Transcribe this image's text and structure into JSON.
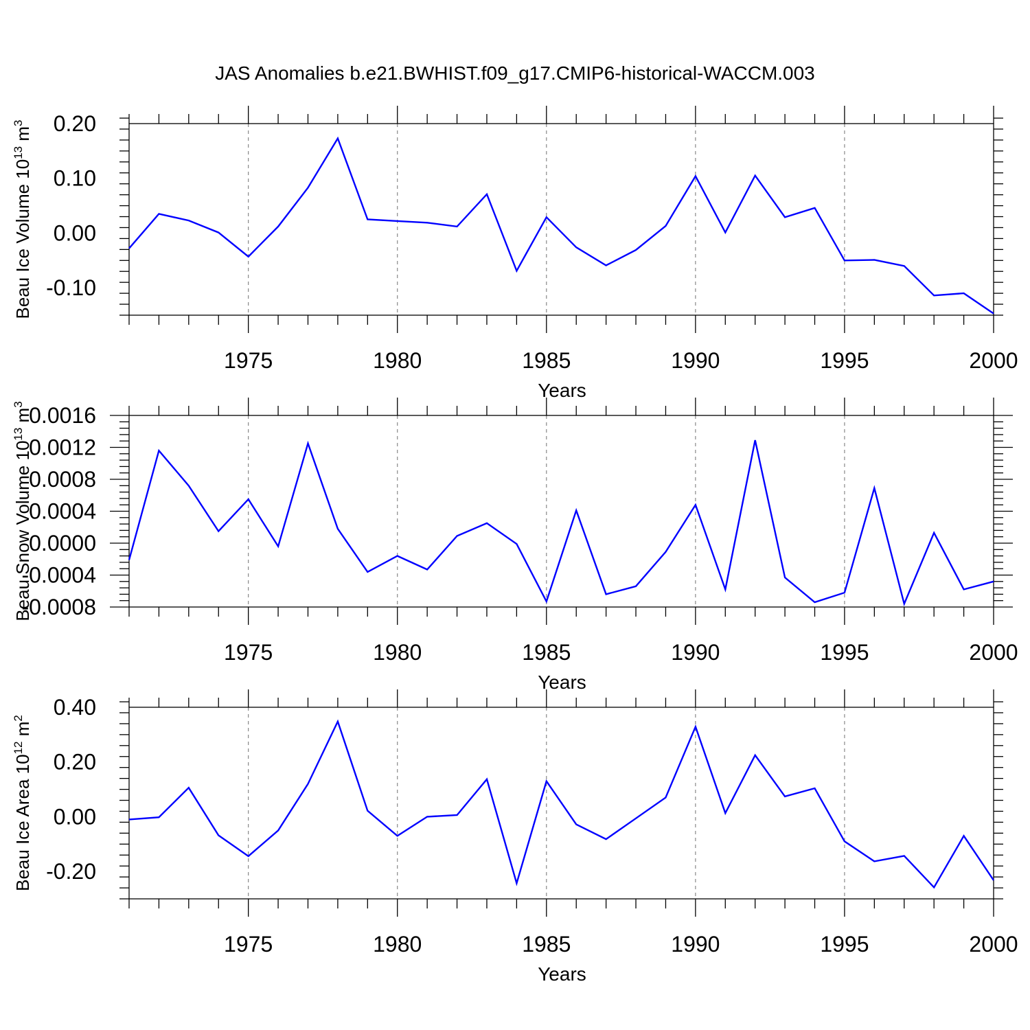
{
  "chart_data": {
    "title": "JAS Anomalies b.e21.BWHIST.f09_g17.CMIP6-historical-WACCM.003",
    "panels": [
      {
        "type": "line",
        "ylabel": "Beau Ice Volume 10",
        "ylabel_exp": "13",
        "ylabel_unit": " m",
        "ylabel_unit_exp": "3",
        "xlabel": "Years",
        "xlim": [
          1971,
          2000
        ],
        "ylim": [
          -0.15,
          0.2
        ],
        "yticks": [
          0.2,
          0.1,
          0.0,
          -0.1
        ],
        "ytick_labels": [
          "0.20",
          "0.10",
          "0.00",
          "-0.10"
        ],
        "xticks": [
          1975,
          1980,
          1985,
          1990,
          1995,
          2000
        ],
        "xtick_labels": [
          "1975",
          "1980",
          "1985",
          "1990",
          "1995",
          "2000"
        ],
        "x": [
          1971,
          1972,
          1973,
          1974,
          1975,
          1976,
          1977,
          1978,
          1979,
          1980,
          1981,
          1982,
          1983,
          1984,
          1985,
          1986,
          1987,
          1988,
          1989,
          1990,
          1991,
          1992,
          1993,
          1994,
          1995,
          1996,
          1997,
          1998,
          1999,
          2000
        ],
        "values": [
          -0.028,
          0.035,
          0.023,
          0.001,
          -0.043,
          0.012,
          0.083,
          0.173,
          0.025,
          0.022,
          0.019,
          0.012,
          0.071,
          -0.069,
          0.029,
          -0.026,
          -0.059,
          -0.031,
          0.013,
          0.104,
          0.001,
          0.105,
          0.029,
          0.046,
          -0.05,
          -0.049,
          -0.06,
          -0.114,
          -0.11,
          -0.147
        ]
      },
      {
        "type": "line",
        "ylabel": "Beau Snow Volume 10",
        "ylabel_exp": "13",
        "ylabel_unit": " m",
        "ylabel_unit_exp": "3",
        "xlabel": "Years",
        "xlim": [
          1971,
          2000
        ],
        "ylim": [
          -0.0008,
          0.0016
        ],
        "yticks": [
          0.0016,
          0.0012,
          0.0008,
          0.0004,
          0.0,
          -0.0004,
          -0.0008
        ],
        "ytick_labels": [
          "0.0016",
          "0.0012",
          "0.0008",
          "0.0004",
          "0.0000",
          "-0.0004",
          "-0.0008"
        ],
        "xticks": [
          1975,
          1980,
          1985,
          1990,
          1995,
          2000
        ],
        "xtick_labels": [
          "1975",
          "1980",
          "1985",
          "1990",
          "1995",
          "2000"
        ],
        "x": [
          1971,
          1972,
          1973,
          1974,
          1975,
          1976,
          1977,
          1978,
          1979,
          1980,
          1981,
          1982,
          1983,
          1984,
          1985,
          1986,
          1987,
          1988,
          1989,
          1990,
          1991,
          1992,
          1993,
          1994,
          1995,
          1996,
          1997,
          1998,
          1999,
          2000
        ],
        "values": [
          -0.00021,
          0.00116,
          0.00072,
          0.00015,
          0.00055,
          -4e-05,
          0.00125,
          0.00018,
          -0.00036,
          -0.00016,
          -0.00033,
          9e-05,
          0.00025,
          -1e-05,
          -0.00073,
          0.00041,
          -0.00064,
          -0.00054,
          -0.00011,
          0.00048,
          -0.00058,
          0.00129,
          -0.00043,
          -0.00074,
          -0.00062,
          0.00069,
          -0.00076,
          0.00013,
          -0.00058,
          -0.00048
        ]
      },
      {
        "type": "line",
        "ylabel": "Beau Ice Area 10",
        "ylabel_exp": "12",
        "ylabel_unit": " m",
        "ylabel_unit_exp": "2",
        "xlabel": "Years",
        "xlim": [
          1971,
          2000
        ],
        "ylim": [
          -0.3,
          0.4
        ],
        "yticks": [
          0.4,
          0.2,
          0.0,
          -0.2
        ],
        "ytick_labels": [
          "0.40",
          "0.20",
          "0.00",
          "-0.20"
        ],
        "xticks": [
          1975,
          1980,
          1985,
          1990,
          1995,
          2000
        ],
        "xtick_labels": [
          "1975",
          "1980",
          "1985",
          "1990",
          "1995",
          "2000"
        ],
        "x": [
          1971,
          1972,
          1973,
          1974,
          1975,
          1976,
          1977,
          1978,
          1979,
          1980,
          1981,
          1982,
          1983,
          1984,
          1985,
          1986,
          1987,
          1988,
          1989,
          1990,
          1991,
          1992,
          1993,
          1994,
          1995,
          1996,
          1997,
          1998,
          1999,
          2000
        ],
        "values": [
          -0.01,
          -0.002,
          0.106,
          -0.068,
          -0.144,
          -0.05,
          0.12,
          0.348,
          0.022,
          -0.07,
          0.0,
          0.006,
          0.137,
          -0.243,
          0.13,
          -0.028,
          -0.082,
          -0.006,
          0.07,
          0.329,
          0.013,
          0.225,
          0.074,
          0.104,
          -0.09,
          -0.163,
          -0.143,
          -0.258,
          -0.07,
          -0.232
        ]
      }
    ]
  }
}
